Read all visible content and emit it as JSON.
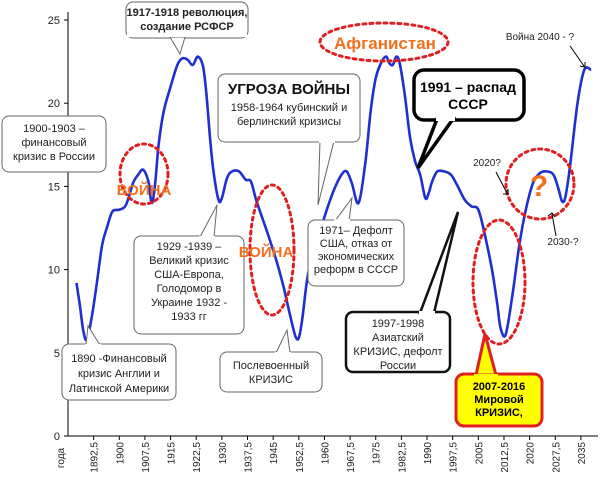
{
  "chart_data": {
    "type": "line",
    "xlabel": "года",
    "ylim": [
      0,
      25
    ],
    "xlim": [
      1885,
      2040
    ],
    "yticks": [
      0,
      5,
      10,
      15,
      20,
      25
    ],
    "xtick_labels": [
      "1892,5",
      "1900",
      "1907,5",
      "1915",
      "1922,5",
      "1930",
      "1937,5",
      "1945",
      "1952,5",
      "1960",
      "1967,5",
      "1975",
      "1982,5",
      "1990",
      "1997,5",
      "2005",
      "2012,5",
      "2020",
      "2027,5",
      "2035"
    ],
    "xtick_values": [
      1892.5,
      1900,
      1907.5,
      1915,
      1922.5,
      1930,
      1937.5,
      1945,
      1952.5,
      1960,
      1967.5,
      1975,
      1982.5,
      1990,
      1997.5,
      2005,
      2012.5,
      2020,
      2027.5,
      2035
    ],
    "grid": false,
    "line_color": "#1f2fd0",
    "series": [
      {
        "x": [
          1887.5,
          1888.5,
          1889.5,
          1890.5,
          1892,
          1893.5,
          1895,
          1896.5,
          1898,
          1900,
          1902,
          1904,
          1905.5,
          1907,
          1908.5,
          1909.5,
          1910.5,
          1911.5,
          1913,
          1915,
          1917,
          1918.5,
          1920,
          1921.5,
          1923,
          1924.5,
          1925.5,
          1926.5,
          1927.5,
          1929,
          1930,
          1931.5,
          1933,
          1935,
          1937,
          1938.5,
          1940,
          1942,
          1944,
          1946,
          1948,
          1950,
          1951.5,
          1952.5,
          1953.5,
          1955,
          1957,
          1959,
          1961,
          1963,
          1965,
          1966.5,
          1968,
          1970,
          1972,
          1973.5,
          1975,
          1976.5,
          1978,
          1979,
          1980,
          1981,
          1982,
          1983.5,
          1985,
          1986.5,
          1988,
          1989.5,
          1990.5,
          1991.5,
          1993,
          1995,
          1997,
          1999,
          2001,
          2003,
          2005,
          2007,
          2009,
          2010.5,
          2011.5,
          2013,
          2015,
          2017,
          2019,
          2021,
          2023,
          2025,
          2027,
          2028.5,
          2029.5,
          2030.5,
          2032,
          2034,
          2036,
          2038
        ],
        "y": [
          9.2,
          7.8,
          6.3,
          5.8,
          7.2,
          9.3,
          11.5,
          12.6,
          13.5,
          13.6,
          13.9,
          15.2,
          15.7,
          16.0,
          15.3,
          14.0,
          15.2,
          17.5,
          19.5,
          21.0,
          22.3,
          22.7,
          22.6,
          22.3,
          22.8,
          22.2,
          20.5,
          18.0,
          16.0,
          14.2,
          14.3,
          15.5,
          15.9,
          15.9,
          15.4,
          15.3,
          14.2,
          13.0,
          11.8,
          10.5,
          9.0,
          7.2,
          6.0,
          5.9,
          7.0,
          9.5,
          11.2,
          12.5,
          13.8,
          14.9,
          15.7,
          15.9,
          15.2,
          14.0,
          16.5,
          19.5,
          21.5,
          22.4,
          22.8,
          22.4,
          22.3,
          22.8,
          22.4,
          20.5,
          18.0,
          16.5,
          15.7,
          14.3,
          14.6,
          15.3,
          15.9,
          15.9,
          15.7,
          15.0,
          14.2,
          13.8,
          13.6,
          12.0,
          10.0,
          8.0,
          6.5,
          6.1,
          8.5,
          11.5,
          13.7,
          15.2,
          15.8,
          15.9,
          15.7,
          14.8,
          14.1,
          14.4,
          16.5,
          20.0,
          22.0,
          22.0
        ]
      }
    ]
  },
  "annotations": {
    "a1890": "1890 -Финансовый кризис Англии и Латинской Америки",
    "a1900": "1900-1903 – финансовый кризис в России",
    "a1917": "1917-1918 революция, создание РСФСР",
    "a1929": "1929 -1939 – Великий кризис США-Европа, Голодомор в Украине 1932 - 1933 гг",
    "threat_title": "УГРОЗА ВОЙНЫ",
    "threat_sub": "1958-1964 кубинский и берлинский  кризисы",
    "postwar": "Послевоенный КРИЗИС",
    "a1971": "1971– Дефолт США, отказ от экономических реформ в СССР",
    "a1991": "1991 – распад СССР",
    "a1997": "1997-1998 Азиатский КРИЗИС, дефолт России",
    "a2007": "2007-2016 Мировой КРИЗИС,",
    "war1": "ВОЙНА",
    "war2": "ВОЙНА",
    "afghan": "Афганистан",
    "q2020": "2020?",
    "q2030": "2030-?",
    "q2040": "Война 2040 - ?",
    "question": "?"
  },
  "colors": {
    "war_text": "#f07020",
    "highlight_bg": "#ffff00",
    "highlight_border": "#e02020",
    "ellipse": "#e02020",
    "axis": "#000000"
  }
}
